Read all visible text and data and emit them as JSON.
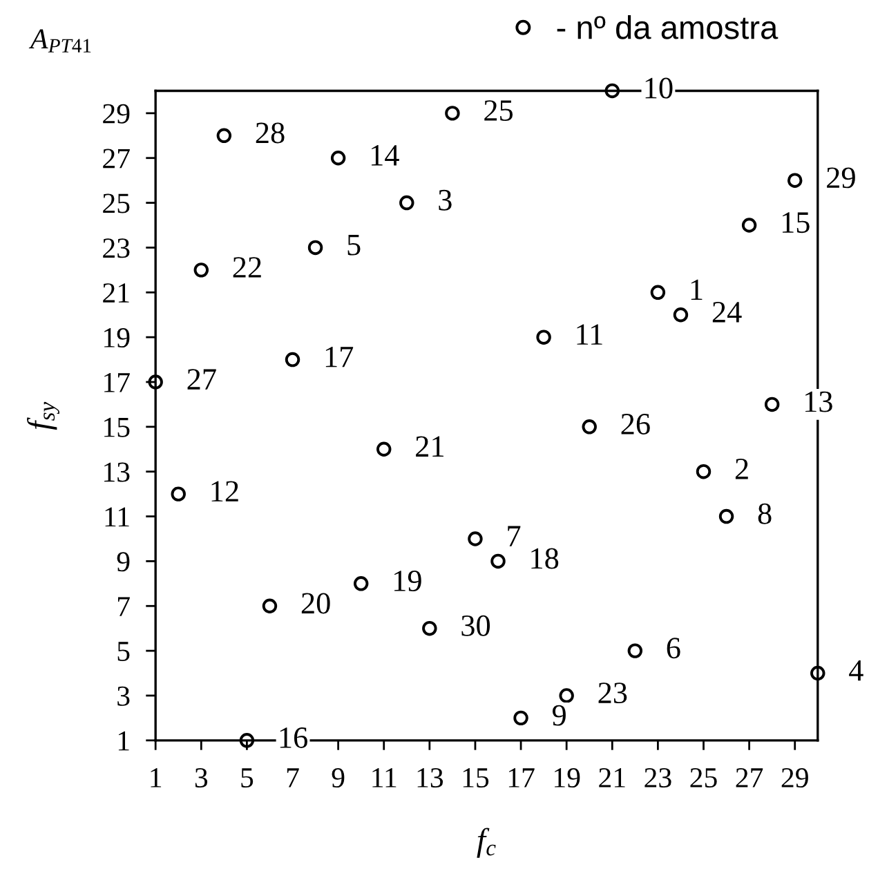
{
  "chart_data": {
    "type": "scatter",
    "title": "A$_{PT41}$",
    "xlabel": "f$_{c}$",
    "ylabel": "f$_{sy}$",
    "xlim": [
      1,
      30
    ],
    "ylim": [
      1,
      30
    ],
    "xticks": [
      1,
      3,
      5,
      7,
      9,
      11,
      13,
      15,
      17,
      19,
      21,
      23,
      25,
      27,
      29
    ],
    "yticks": [
      1,
      3,
      5,
      7,
      9,
      11,
      13,
      15,
      17,
      19,
      21,
      23,
      25,
      27,
      29
    ],
    "legend": "top right",
    "marker": "circle",
    "series": [
      {
        "name": "- nº da amostra",
        "color": "#000000",
        "x": [
          23,
          25,
          12,
          30,
          8,
          22,
          15,
          26,
          17,
          21,
          18,
          2,
          28,
          9,
          27,
          5,
          7,
          16,
          10,
          6,
          11,
          3,
          19,
          24,
          14,
          20,
          1,
          4,
          29,
          13
        ],
        "values": [
          21,
          13,
          25,
          4,
          23,
          5,
          10,
          11,
          2,
          30,
          19,
          12,
          16,
          27,
          24,
          1,
          18,
          9,
          8,
          7,
          14,
          22,
          3,
          20,
          29,
          15,
          17,
          28,
          26,
          6
        ]
      }
    ],
    "annotations": [
      {
        "text": "1",
        "x": 23,
        "y": 21
      },
      {
        "text": "2",
        "x": 25,
        "y": 13
      },
      {
        "text": "3",
        "x": 12,
        "y": 25
      },
      {
        "text": "4",
        "x": 30,
        "y": 4
      },
      {
        "text": "5",
        "x": 8,
        "y": 23
      },
      {
        "text": "6",
        "x": 22,
        "y": 5
      },
      {
        "text": "7",
        "x": 15,
        "y": 10
      },
      {
        "text": "8",
        "x": 26,
        "y": 11
      },
      {
        "text": "9",
        "x": 17,
        "y": 2
      },
      {
        "text": "10",
        "x": 21,
        "y": 30
      },
      {
        "text": "11",
        "x": 18,
        "y": 19
      },
      {
        "text": "12",
        "x": 2,
        "y": 12
      },
      {
        "text": "13",
        "x": 28,
        "y": 16
      },
      {
        "text": "14",
        "x": 9,
        "y": 27
      },
      {
        "text": "15",
        "x": 27,
        "y": 24
      },
      {
        "text": "16",
        "x": 5,
        "y": 1
      },
      {
        "text": "17",
        "x": 7,
        "y": 18
      },
      {
        "text": "18",
        "x": 16,
        "y": 9
      },
      {
        "text": "19",
        "x": 10,
        "y": 8
      },
      {
        "text": "20",
        "x": 6,
        "y": 7
      },
      {
        "text": "21",
        "x": 11,
        "y": 14
      },
      {
        "text": "22",
        "x": 3,
        "y": 22
      },
      {
        "text": "23",
        "x": 19,
        "y": 3
      },
      {
        "text": "24",
        "x": 24,
        "y": 20
      },
      {
        "text": "25",
        "x": 14,
        "y": 29
      },
      {
        "text": "26",
        "x": 20,
        "y": 15
      },
      {
        "text": "27",
        "x": 1,
        "y": 17
      },
      {
        "text": "28",
        "x": 4,
        "y": 28
      },
      {
        "text": "29",
        "x": 29,
        "y": 26
      },
      {
        "text": "30",
        "x": 13,
        "y": 6
      }
    ]
  }
}
